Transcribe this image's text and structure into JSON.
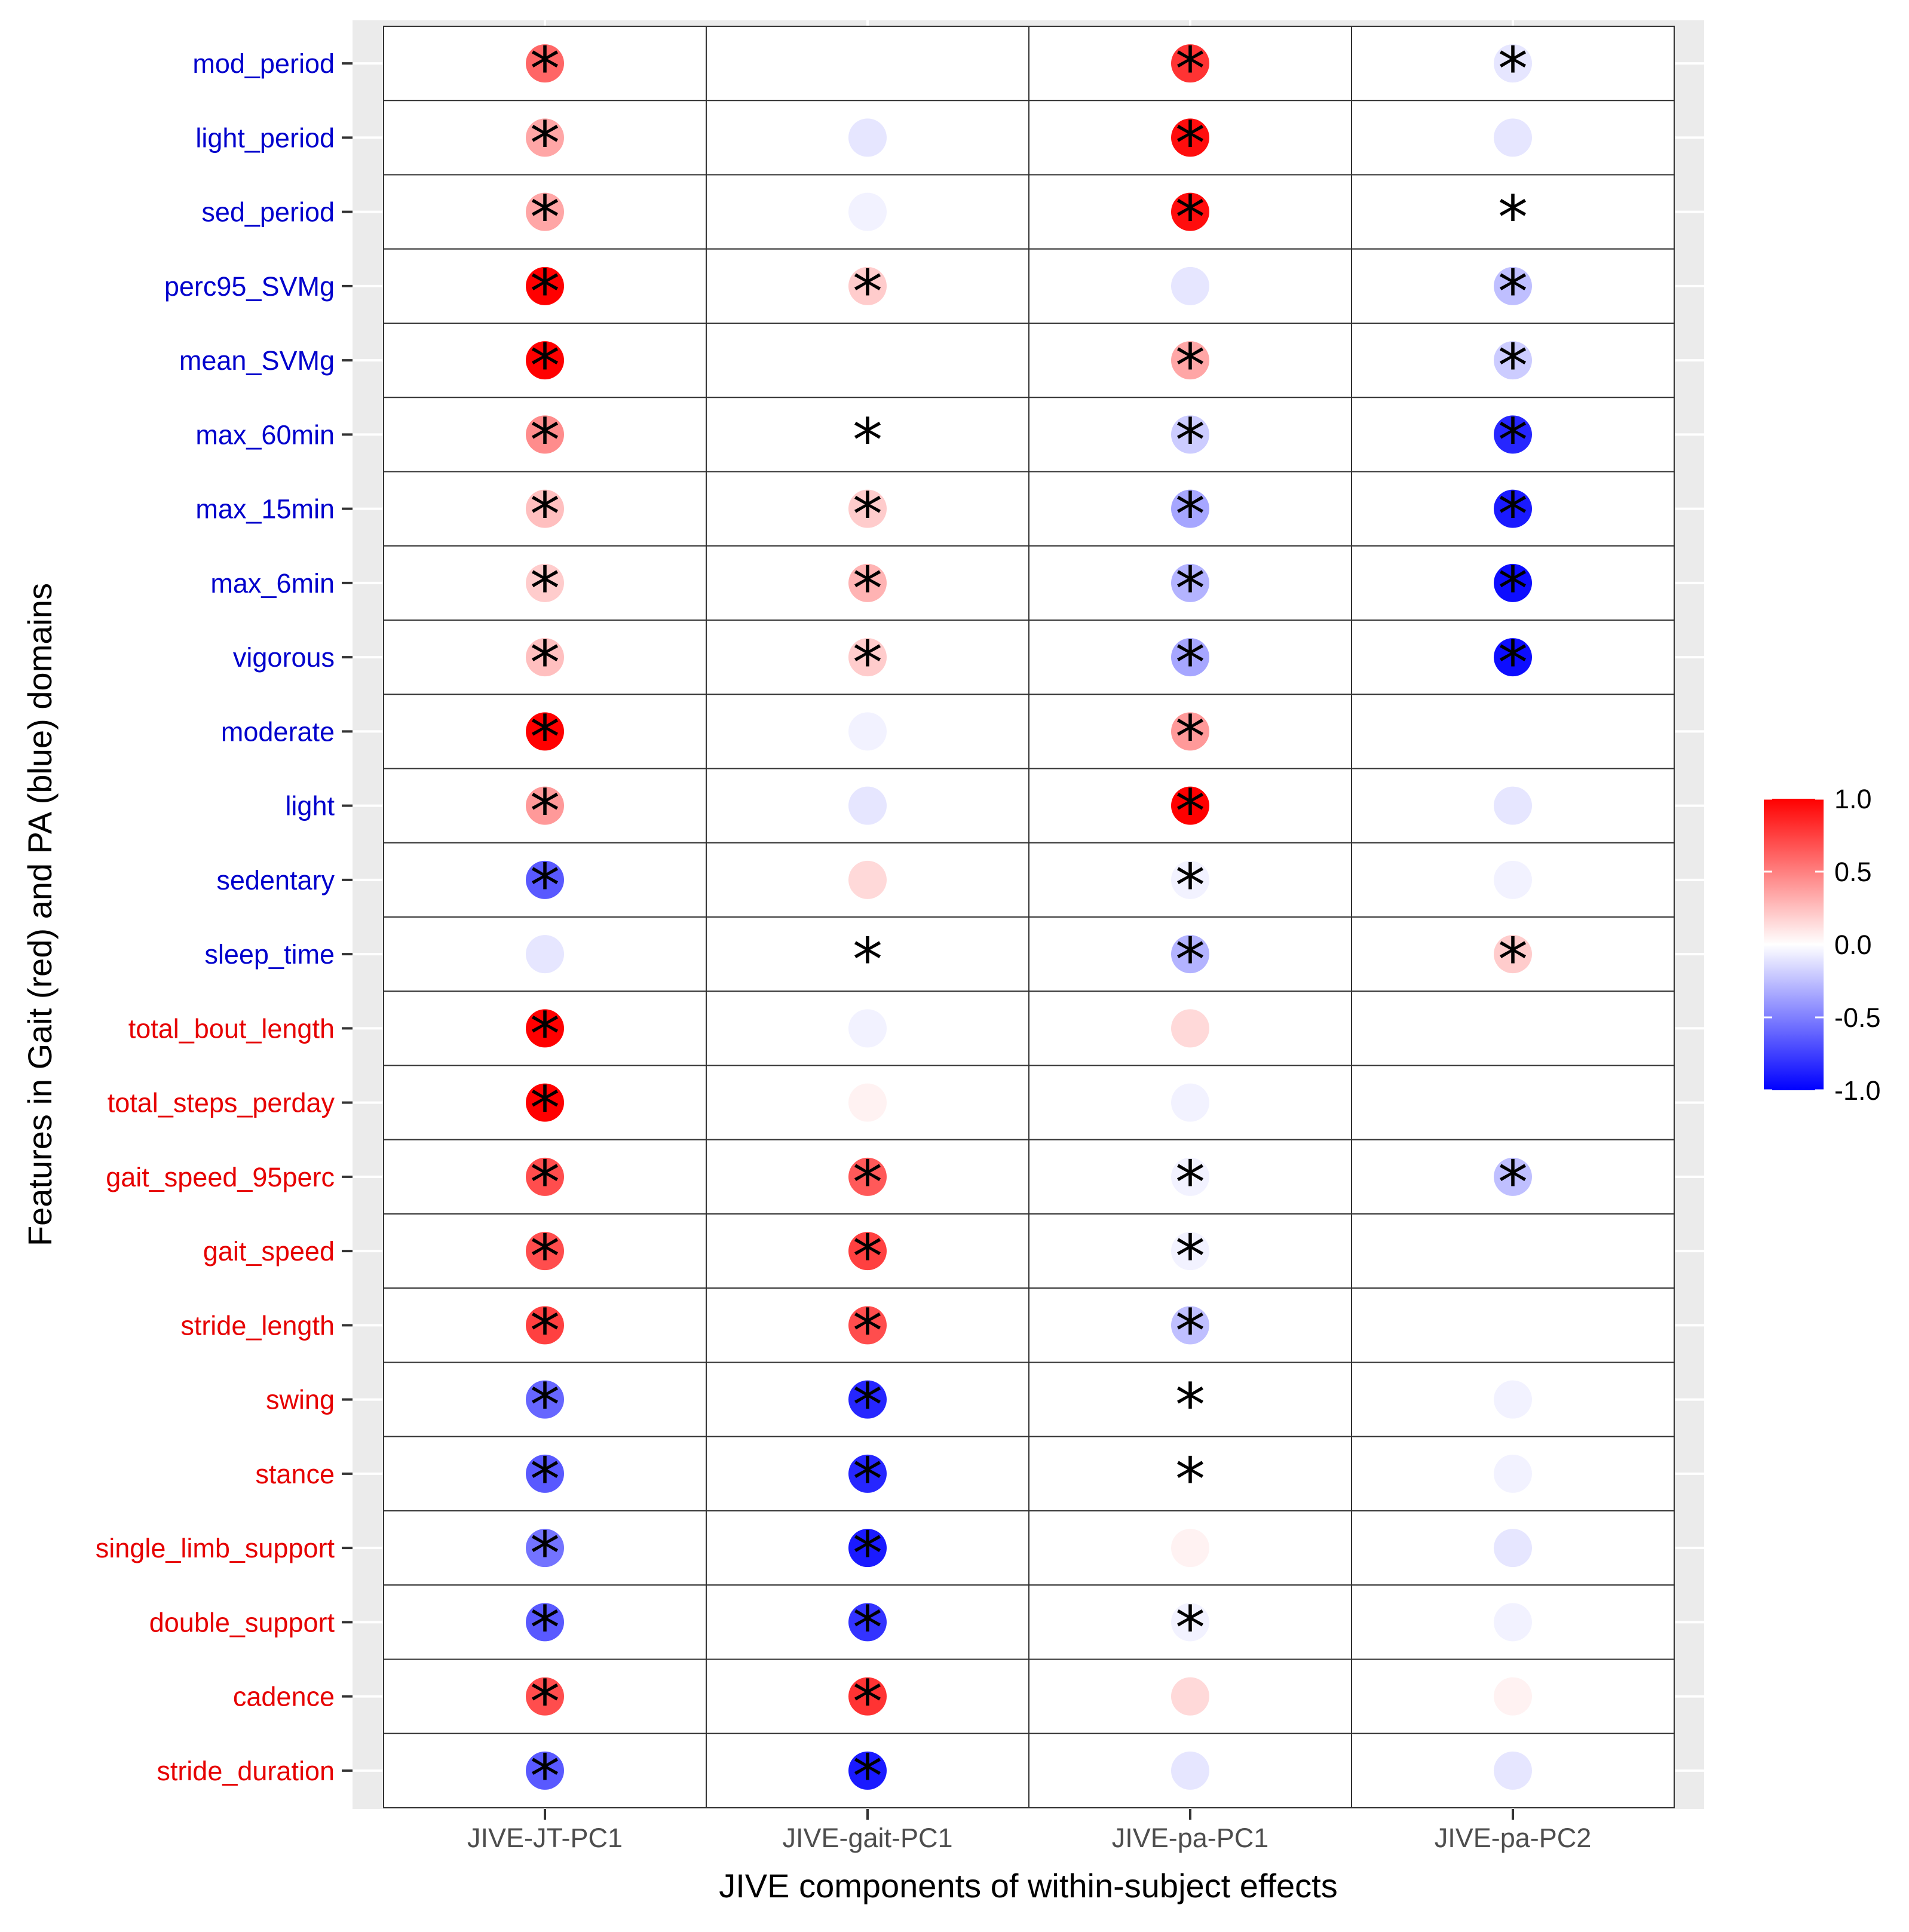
{
  "chart_data": {
    "type": "dot-matrix",
    "title": "",
    "xlabel": "JIVE components of within-subject effects",
    "ylabel": "Features in Gait (red) and PA (blue) domains",
    "columns": [
      "JIVE-JT-PC1",
      "JIVE-gait-PC1",
      "JIVE-pa-PC1",
      "JIVE-pa-PC2"
    ],
    "rows": [
      {
        "name": "mod_period",
        "domain": "PA",
        "values": [
          0.6,
          0.0,
          0.8,
          -0.1
        ],
        "sig": [
          true,
          false,
          true,
          true
        ]
      },
      {
        "name": "light_period",
        "domain": "PA",
        "values": [
          0.35,
          -0.1,
          0.95,
          -0.1
        ],
        "sig": [
          true,
          false,
          true,
          false
        ]
      },
      {
        "name": "sed_period",
        "domain": "PA",
        "values": [
          0.35,
          -0.05,
          0.95,
          0.0
        ],
        "sig": [
          true,
          false,
          true,
          true
        ]
      },
      {
        "name": "perc95_SVMg",
        "domain": "PA",
        "values": [
          1.0,
          0.2,
          -0.1,
          -0.25
        ],
        "sig": [
          true,
          true,
          false,
          true
        ]
      },
      {
        "name": "mean_SVMg",
        "domain": "PA",
        "values": [
          1.0,
          0.0,
          0.35,
          -0.2
        ],
        "sig": [
          true,
          false,
          true,
          true
        ]
      },
      {
        "name": "max_60min",
        "domain": "PA",
        "values": [
          0.45,
          0.0,
          -0.2,
          -0.85
        ],
        "sig": [
          true,
          true,
          true,
          true
        ]
      },
      {
        "name": "max_15min",
        "domain": "PA",
        "values": [
          0.25,
          0.2,
          -0.35,
          -0.9
        ],
        "sig": [
          true,
          true,
          true,
          true
        ]
      },
      {
        "name": "max_6min",
        "domain": "PA",
        "values": [
          0.2,
          0.3,
          -0.3,
          -0.95
        ],
        "sig": [
          true,
          true,
          true,
          true
        ]
      },
      {
        "name": "vigorous",
        "domain": "PA",
        "values": [
          0.25,
          0.2,
          -0.35,
          -0.95
        ],
        "sig": [
          true,
          true,
          true,
          true
        ]
      },
      {
        "name": "moderate",
        "domain": "PA",
        "values": [
          1.0,
          -0.05,
          0.4,
          0.0
        ],
        "sig": [
          true,
          false,
          true,
          false
        ]
      },
      {
        "name": "light",
        "domain": "PA",
        "values": [
          0.4,
          -0.1,
          1.0,
          -0.1
        ],
        "sig": [
          true,
          false,
          true,
          false
        ]
      },
      {
        "name": "sedentary",
        "domain": "PA",
        "values": [
          -0.65,
          0.15,
          -0.05,
          -0.05
        ],
        "sig": [
          true,
          false,
          true,
          false
        ]
      },
      {
        "name": "sleep_time",
        "domain": "PA",
        "values": [
          -0.1,
          0.0,
          -0.3,
          0.2
        ],
        "sig": [
          false,
          true,
          true,
          true
        ]
      },
      {
        "name": "total_bout_length",
        "domain": "Gait",
        "values": [
          1.0,
          -0.05,
          0.15,
          0.0
        ],
        "sig": [
          true,
          false,
          false,
          false
        ]
      },
      {
        "name": "total_steps_perday",
        "domain": "Gait",
        "values": [
          1.0,
          0.05,
          -0.05,
          0.0
        ],
        "sig": [
          true,
          false,
          false,
          false
        ]
      },
      {
        "name": "gait_speed_95perc",
        "domain": "Gait",
        "values": [
          0.7,
          0.65,
          -0.05,
          -0.25
        ],
        "sig": [
          true,
          true,
          true,
          true
        ]
      },
      {
        "name": "gait_speed",
        "domain": "Gait",
        "values": [
          0.7,
          0.75,
          -0.05,
          0.0
        ],
        "sig": [
          true,
          true,
          true,
          false
        ]
      },
      {
        "name": "stride_length",
        "domain": "Gait",
        "values": [
          0.75,
          0.7,
          -0.25,
          0.0
        ],
        "sig": [
          true,
          true,
          true,
          false
        ]
      },
      {
        "name": "swing",
        "domain": "Gait",
        "values": [
          -0.6,
          -0.85,
          0.0,
          -0.05
        ],
        "sig": [
          true,
          true,
          true,
          false
        ]
      },
      {
        "name": "stance",
        "domain": "Gait",
        "values": [
          -0.65,
          -0.85,
          0.0,
          -0.05
        ],
        "sig": [
          true,
          true,
          true,
          false
        ]
      },
      {
        "name": "single_limb_support",
        "domain": "Gait",
        "values": [
          -0.55,
          -0.9,
          0.05,
          -0.1
        ],
        "sig": [
          true,
          true,
          false,
          false
        ]
      },
      {
        "name": "double_support",
        "domain": "Gait",
        "values": [
          -0.65,
          -0.8,
          -0.05,
          -0.05
        ],
        "sig": [
          true,
          true,
          true,
          false
        ]
      },
      {
        "name": "cadence",
        "domain": "Gait",
        "values": [
          0.7,
          0.8,
          0.15,
          0.05
        ],
        "sig": [
          true,
          true,
          false,
          false
        ]
      },
      {
        "name": "stride_duration",
        "domain": "Gait",
        "values": [
          -0.65,
          -0.9,
          -0.1,
          -0.1
        ],
        "sig": [
          true,
          true,
          false,
          false
        ]
      }
    ],
    "significance_marker": "*",
    "legend": {
      "title": "",
      "ticks": [
        "1.0",
        "0.5",
        "0.0",
        "-0.5",
        "-1.0"
      ],
      "tick_values": [
        1.0,
        0.5,
        0.0,
        -0.5,
        -1.0
      ],
      "range": [
        -1.0,
        1.0
      ],
      "placement": "right"
    },
    "colors": {
      "high": "#ff0000",
      "mid": "#ffffff",
      "low": "#0000ff",
      "pa_label": "#0000cc",
      "gait_label": "#e60000",
      "panel_bg": "#ebebeb",
      "grid": "#ffffff",
      "tile_border": "#333333"
    }
  }
}
